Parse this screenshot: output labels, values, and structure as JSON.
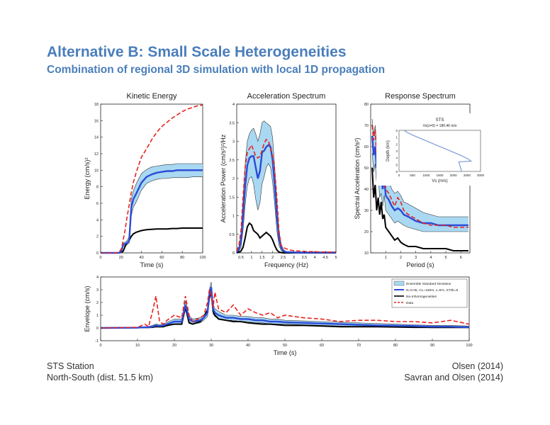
{
  "slide": {
    "title": "Alternative B:  Small Scale Heterogeneities",
    "subtitle": "Combination of regional 3D simulation with local 1D propagation",
    "footer_left_1": "STS Station",
    "footer_left_2": "North-South (dist. 51.5 km)",
    "footer_right_1": "Olsen (2014)",
    "footer_right_2": "Savran and Olsen (2014)"
  },
  "colors": {
    "data": "#e8231f",
    "model": "#2a4bd7",
    "band": "#a9d8f2",
    "band_edge": "#333333",
    "no_inhom": "#000000",
    "profile": "#7e9bd6"
  },
  "chart_data": [
    {
      "type": "line",
      "title": "Kinetic Energy",
      "xlabel": "Time (s)",
      "ylabel": "Energy (cm/s)²",
      "xlim": [
        0,
        100
      ],
      "ylim": [
        0,
        18
      ],
      "xticks": [
        0,
        20,
        40,
        60,
        80,
        100
      ],
      "yticks": [
        0,
        2,
        4,
        6,
        8,
        10,
        12,
        14,
        16,
        18
      ],
      "x": [
        0,
        15,
        18,
        20,
        21,
        22,
        24,
        26,
        28,
        30,
        32,
        35,
        40,
        45,
        50,
        55,
        60,
        65,
        70,
        75,
        80,
        85,
        90,
        95,
        100
      ],
      "series": [
        {
          "name": "Data",
          "role": "data",
          "values": [
            0,
            0,
            0.1,
            0.4,
            0.8,
            1.5,
            2.8,
            4.4,
            5.8,
            7.3,
            8.5,
            9.8,
            11.6,
            12.6,
            13.7,
            14.6,
            15.3,
            15.8,
            16.3,
            16.7,
            17.1,
            17.4,
            17.6,
            17.8,
            17.9
          ]
        },
        {
          "name": "N=0.05, CL=150m, ε=5%, ST2b=5",
          "role": "model",
          "values": [
            0,
            0,
            0,
            0.1,
            0.5,
            1.0,
            1.1,
            1.2,
            1.5,
            5.5,
            6.5,
            7.2,
            8.5,
            9.2,
            9.5,
            9.7,
            9.8,
            9.9,
            9.9,
            10.0,
            10.0,
            10.0,
            10.0,
            10.0,
            10.0
          ]
        },
        {
          "name": "Ensemble Standard Deviation (upper)",
          "role": "band_hi",
          "values": [
            0,
            0,
            0,
            0.1,
            0.6,
            1.2,
            1.3,
            1.5,
            2.0,
            6.5,
            7.5,
            8.4,
            9.6,
            10.1,
            10.4,
            10.5,
            10.6,
            10.7,
            10.7,
            10.8,
            10.8,
            10.8,
            10.8,
            10.8,
            10.8
          ]
        },
        {
          "name": "Ensemble Standard Deviation (lower)",
          "role": "band_lo",
          "values": [
            0,
            0,
            0,
            0.1,
            0.4,
            0.8,
            0.9,
            1.0,
            1.2,
            4.5,
            5.5,
            6.2,
            7.6,
            8.4,
            8.7,
            8.9,
            9.0,
            9.0,
            9.1,
            9.1,
            9.1,
            9.1,
            9.2,
            9.2,
            9.2
          ]
        },
        {
          "name": "No-Inhomogeneities",
          "role": "none",
          "values": [
            0,
            0,
            0,
            0.05,
            0.1,
            0.2,
            0.8,
            1.2,
            1.5,
            2.0,
            2.3,
            2.5,
            2.7,
            2.8,
            2.85,
            2.9,
            2.9,
            2.9,
            2.95,
            2.95,
            3.0,
            3.0,
            3.0,
            3.0,
            3.0
          ]
        }
      ]
    },
    {
      "type": "line",
      "title": "Acceleration Spectrum",
      "xlabel": "Frequency (Hz)",
      "ylabel": "Acceleration Power (cm/s²)²/Hz",
      "xlim": [
        0.3,
        5
      ],
      "ylim": [
        0,
        4
      ],
      "xticks": [
        0.5,
        1,
        1.5,
        2,
        2.5,
        3,
        3.5,
        4,
        4.5,
        5
      ],
      "yticks": [
        0,
        0.5,
        1,
        1.5,
        2,
        2.5,
        3,
        3.5,
        4
      ],
      "x": [
        0.3,
        0.4,
        0.5,
        0.6,
        0.7,
        0.8,
        0.9,
        1.0,
        1.1,
        1.2,
        1.3,
        1.4,
        1.5,
        1.6,
        1.7,
        1.8,
        1.9,
        2.0,
        2.1,
        2.2,
        2.3,
        2.4,
        2.5,
        2.6,
        2.7,
        2.8,
        3.0,
        3.5,
        4.0,
        4.5,
        5.0
      ],
      "series": [
        {
          "name": "Data",
          "role": "data",
          "values": [
            0.05,
            0.2,
            0.6,
            1.5,
            2.3,
            2.7,
            2.8,
            2.9,
            2.75,
            2.6,
            2.55,
            2.6,
            2.75,
            2.95,
            3.05,
            3.0,
            2.85,
            2.6,
            2.2,
            1.5,
            0.6,
            0.2,
            0.15,
            0.12,
            0.1,
            0.08,
            0.06,
            0.04,
            0.03,
            0.02,
            0.02
          ]
        },
        {
          "name": "N=0.05, CL=150m, ε=5%, ST2b=5",
          "role": "model",
          "values": [
            0.02,
            0.1,
            0.3,
            1.0,
            1.8,
            2.35,
            2.55,
            2.6,
            2.6,
            2.3,
            2.0,
            2.2,
            2.7,
            2.75,
            2.85,
            2.9,
            2.85,
            2.5,
            1.8,
            1.0,
            0.4,
            0.15,
            0.05,
            0.03,
            0.02,
            0.02,
            0.01,
            0.01,
            0.01,
            0.01,
            0.01
          ]
        },
        {
          "name": "Ensemble Standard Deviation (upper)",
          "role": "band_hi",
          "values": [
            0.03,
            0.15,
            0.5,
            1.4,
            2.4,
            3.0,
            3.2,
            3.3,
            3.35,
            3.2,
            3.0,
            3.2,
            3.5,
            3.55,
            3.5,
            3.45,
            3.4,
            3.1,
            2.3,
            1.4,
            0.6,
            0.25,
            0.1,
            0.05,
            0.03,
            0.02,
            0.02,
            0.01,
            0.01,
            0.01,
            0.01
          ]
        },
        {
          "name": "Ensemble Standard Deviation (lower)",
          "role": "band_lo",
          "values": [
            0.01,
            0.05,
            0.15,
            0.6,
            1.3,
            1.8,
            2.0,
            2.05,
            1.85,
            1.45,
            1.15,
            1.35,
            1.85,
            2.05,
            2.3,
            2.4,
            2.3,
            1.9,
            1.3,
            0.6,
            0.2,
            0.07,
            0.02,
            0.01,
            0.01,
            0.01,
            0.0,
            0.0,
            0.0,
            0.0,
            0.0
          ]
        },
        {
          "name": "No-Inhomogeneities",
          "role": "none",
          "values": [
            0.0,
            0.02,
            0.05,
            0.15,
            0.4,
            0.7,
            0.8,
            0.75,
            0.6,
            0.55,
            0.5,
            0.4,
            0.45,
            0.5,
            0.55,
            0.5,
            0.45,
            0.35,
            0.2,
            0.08,
            0.02,
            0.01,
            0.0,
            0.0,
            0.0,
            0.0,
            0.0,
            0.0,
            0.0,
            0.0,
            0.0
          ]
        }
      ]
    },
    {
      "type": "line",
      "title": "Response Spectrum",
      "xlabel": "Period (s)",
      "ylabel": "Spectral Acceleration (cm/s²)",
      "xlim": [
        0,
        6.6
      ],
      "ylim": [
        10,
        80
      ],
      "xticks": [
        1,
        2,
        3,
        4,
        5,
        6
      ],
      "yticks": [
        10,
        20,
        30,
        40,
        50,
        60,
        70,
        80
      ],
      "x": [
        0.1,
        0.2,
        0.3,
        0.4,
        0.5,
        0.6,
        0.7,
        0.8,
        0.9,
        1.0,
        1.2,
        1.4,
        1.6,
        1.8,
        2.0,
        2.2,
        2.5,
        3.0,
        3.5,
        4.0,
        4.5,
        5.0,
        5.5,
        6.0,
        6.5
      ],
      "series": [
        {
          "name": "Data",
          "role": "data",
          "values": [
            70,
            63,
            68,
            55,
            60,
            48,
            50,
            45,
            52,
            40,
            38,
            35,
            32,
            36,
            34,
            30,
            28,
            26,
            24,
            23,
            23,
            23,
            22,
            22,
            22
          ]
        },
        {
          "name": "N=0.05, CL=150m, ε=5%, ST2b=5",
          "role": "model",
          "values": [
            65,
            56,
            60,
            50,
            54,
            44,
            46,
            40,
            45,
            37,
            35,
            32,
            30,
            31,
            30,
            28,
            27,
            25,
            24,
            24,
            23,
            23,
            23,
            23,
            23
          ]
        },
        {
          "name": "Ensemble Standard Deviation (upper)",
          "role": "band_hi",
          "values": [
            73,
            66,
            70,
            60,
            64,
            54,
            56,
            50,
            55,
            46,
            44,
            40,
            38,
            39,
            37,
            34,
            33,
            31,
            29,
            28,
            27,
            27,
            27,
            27,
            27
          ]
        },
        {
          "name": "Ensemble Standard Deviation (lower)",
          "role": "band_lo",
          "values": [
            57,
            48,
            52,
            42,
            46,
            36,
            38,
            32,
            37,
            30,
            28,
            26,
            24,
            25,
            24,
            23,
            22,
            21,
            20,
            20,
            20,
            20,
            20,
            20,
            20
          ]
        },
        {
          "name": "No-Inhomogeneities",
          "role": "none",
          "values": [
            50,
            36,
            42,
            30,
            36,
            28,
            34,
            26,
            28,
            22,
            20,
            18,
            16,
            17,
            15,
            14,
            13,
            13,
            12,
            12,
            12,
            12,
            11,
            11,
            11
          ]
        }
      ],
      "inset": {
        "title": "STS",
        "subtitle": "Vs(z=0) = 180.46 m/s",
        "xlabel": "Vs (m/s)",
        "ylabel": "Depth (km)",
        "xlim": [
          0,
          3000
        ],
        "ylim": [
          0,
          6
        ],
        "xticks": [
          0,
          500,
          1000,
          1500,
          2000,
          2500,
          3000
        ],
        "yticks": [
          0,
          1,
          2,
          3,
          4,
          5,
          6
        ],
        "vs": [
          180,
          300,
          500,
          800,
          1100,
          1400,
          1700,
          2000,
          2300,
          2550,
          2650,
          2200,
          2250,
          2300
        ],
        "depth": [
          0,
          0.3,
          0.7,
          1.2,
          1.7,
          2.2,
          2.7,
          3.2,
          3.7,
          4.2,
          4.5,
          4.6,
          5.3,
          6.0
        ]
      }
    },
    {
      "type": "line",
      "title": "",
      "xlabel": "Time (s)",
      "ylabel": "Envelope (cm/s)",
      "xlim": [
        0,
        100
      ],
      "ylim": [
        -1,
        4
      ],
      "xticks": [
        0,
        10,
        20,
        30,
        40,
        50,
        60,
        70,
        80,
        90,
        100
      ],
      "yticks": [
        -1,
        0,
        1,
        2,
        3,
        4
      ],
      "legend": {
        "position": "top-right",
        "entries": [
          "Ensemble Standard Deviation",
          "N=0.05, CL=150m, ε=5%, ST2b=5",
          "No-Inhomogeneities",
          "Data"
        ]
      },
      "x": [
        0,
        10,
        12,
        13,
        14,
        15,
        16,
        17,
        18,
        20,
        22,
        23,
        24,
        25,
        27,
        28,
        29,
        29.5,
        30,
        30.5,
        31,
        32,
        34,
        36,
        38,
        40,
        42,
        44,
        46,
        48,
        50,
        55,
        60,
        65,
        70,
        75,
        80,
        85,
        90,
        95,
        100
      ],
      "series": [
        {
          "name": "Data",
          "role": "data",
          "values": [
            0,
            0.05,
            0.3,
            0.1,
            1.2,
            2.5,
            0.5,
            0.3,
            0.6,
            1.0,
            0.8,
            2.5,
            1.0,
            0.5,
            0.8,
            1.0,
            2.0,
            3.0,
            2.6,
            1.6,
            2.8,
            1.5,
            1.2,
            1.8,
            1.0,
            1.5,
            1.2,
            1.0,
            1.2,
            0.8,
            1.0,
            0.8,
            0.7,
            0.5,
            0.6,
            0.6,
            0.5,
            0.5,
            0.4,
            0.6,
            0.3
          ]
        },
        {
          "name": "N=0.05, CL=150m, ε=5%, ST2b=5",
          "role": "model",
          "values": [
            0,
            0.02,
            0.05,
            0.05,
            0.1,
            0.2,
            0.15,
            0.2,
            0.3,
            0.5,
            0.5,
            1.8,
            0.7,
            0.5,
            0.6,
            0.8,
            1.2,
            2.6,
            3.2,
            1.5,
            1.2,
            1.0,
            0.8,
            0.8,
            0.7,
            0.7,
            0.6,
            0.6,
            0.5,
            0.5,
            0.45,
            0.4,
            0.35,
            0.3,
            0.25,
            0.2,
            0.18,
            0.15,
            0.1,
            0.1,
            0.05
          ]
        },
        {
          "name": "Ensemble Standard Deviation (upper)",
          "role": "band_hi",
          "values": [
            0,
            0.05,
            0.1,
            0.1,
            0.2,
            0.3,
            0.25,
            0.3,
            0.45,
            0.7,
            0.7,
            2.1,
            0.9,
            0.7,
            0.8,
            1.0,
            1.5,
            3.0,
            3.6,
            1.9,
            1.5,
            1.3,
            1.0,
            1.0,
            0.9,
            0.9,
            0.8,
            0.8,
            0.7,
            0.7,
            0.6,
            0.55,
            0.5,
            0.45,
            0.4,
            0.35,
            0.3,
            0.25,
            0.2,
            0.2,
            0.15
          ]
        },
        {
          "name": "Ensemble Standard Deviation (lower)",
          "role": "band_lo",
          "values": [
            0,
            0.0,
            0.0,
            0.0,
            0.02,
            0.1,
            0.05,
            0.1,
            0.15,
            0.3,
            0.3,
            1.5,
            0.5,
            0.3,
            0.4,
            0.6,
            0.9,
            2.2,
            2.8,
            1.1,
            0.9,
            0.7,
            0.6,
            0.6,
            0.5,
            0.5,
            0.4,
            0.4,
            0.3,
            0.3,
            0.3,
            0.25,
            0.2,
            0.15,
            0.1,
            0.08,
            0.06,
            0.05,
            0.0,
            0.0,
            0.0
          ]
        },
        {
          "name": "No-Inhomogeneities",
          "role": "none",
          "values": [
            0,
            0.02,
            0.05,
            0.05,
            0.05,
            0.1,
            0.1,
            0.1,
            0.2,
            0.3,
            0.3,
            1.6,
            0.4,
            0.3,
            0.5,
            0.8,
            1.4,
            2.3,
            2.9,
            1.3,
            1.0,
            0.7,
            0.6,
            0.5,
            0.5,
            0.4,
            0.35,
            0.3,
            0.3,
            0.25,
            0.2,
            0.2,
            0.15,
            0.1,
            0.1,
            0.1,
            0.08,
            0.05,
            0.05,
            0.05,
            0.05
          ]
        }
      ]
    }
  ]
}
